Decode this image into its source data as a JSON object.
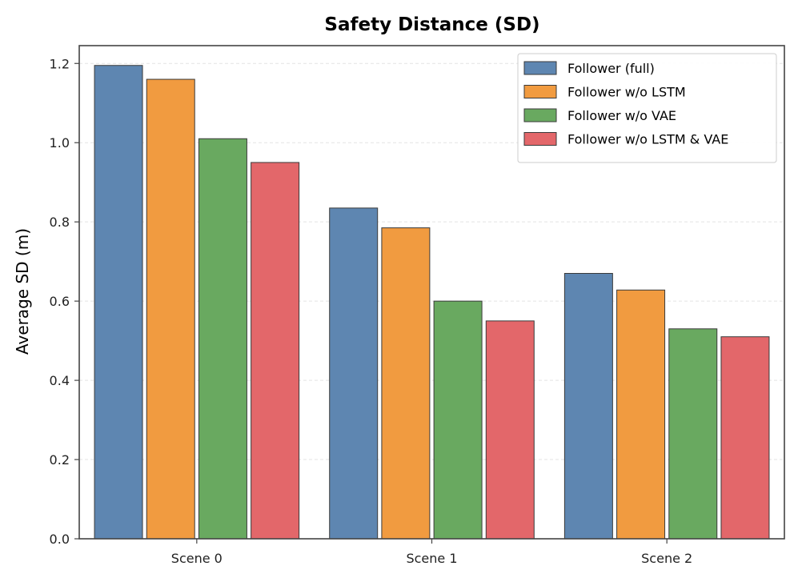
{
  "chart_data": {
    "type": "bar",
    "title": "Safety Distance (SD)",
    "xlabel": "",
    "ylabel": "Average SD (m)",
    "categories": [
      "Scene 0",
      "Scene 1",
      "Scene 2"
    ],
    "series": [
      {
        "name": "Follower (full)",
        "color": "#5e86b1",
        "values": [
          1.195,
          0.835,
          0.67
        ]
      },
      {
        "name": "Follower w/o LSTM",
        "color": "#f19b40",
        "values": [
          1.16,
          0.785,
          0.628
        ]
      },
      {
        "name": "Follower w/o VAE",
        "color": "#69a960",
        "values": [
          1.01,
          0.6,
          0.53
        ]
      },
      {
        "name": "Follower w/o LSTM & VAE",
        "color": "#e3676a",
        "values": [
          0.95,
          0.55,
          0.51
        ]
      }
    ],
    "ylim": [
      0,
      1.245
    ],
    "yticks": [
      "0.0",
      "0.2",
      "0.4",
      "0.6",
      "0.8",
      "1.0",
      "1.2"
    ],
    "grid": true,
    "legend_position": "top-right"
  }
}
